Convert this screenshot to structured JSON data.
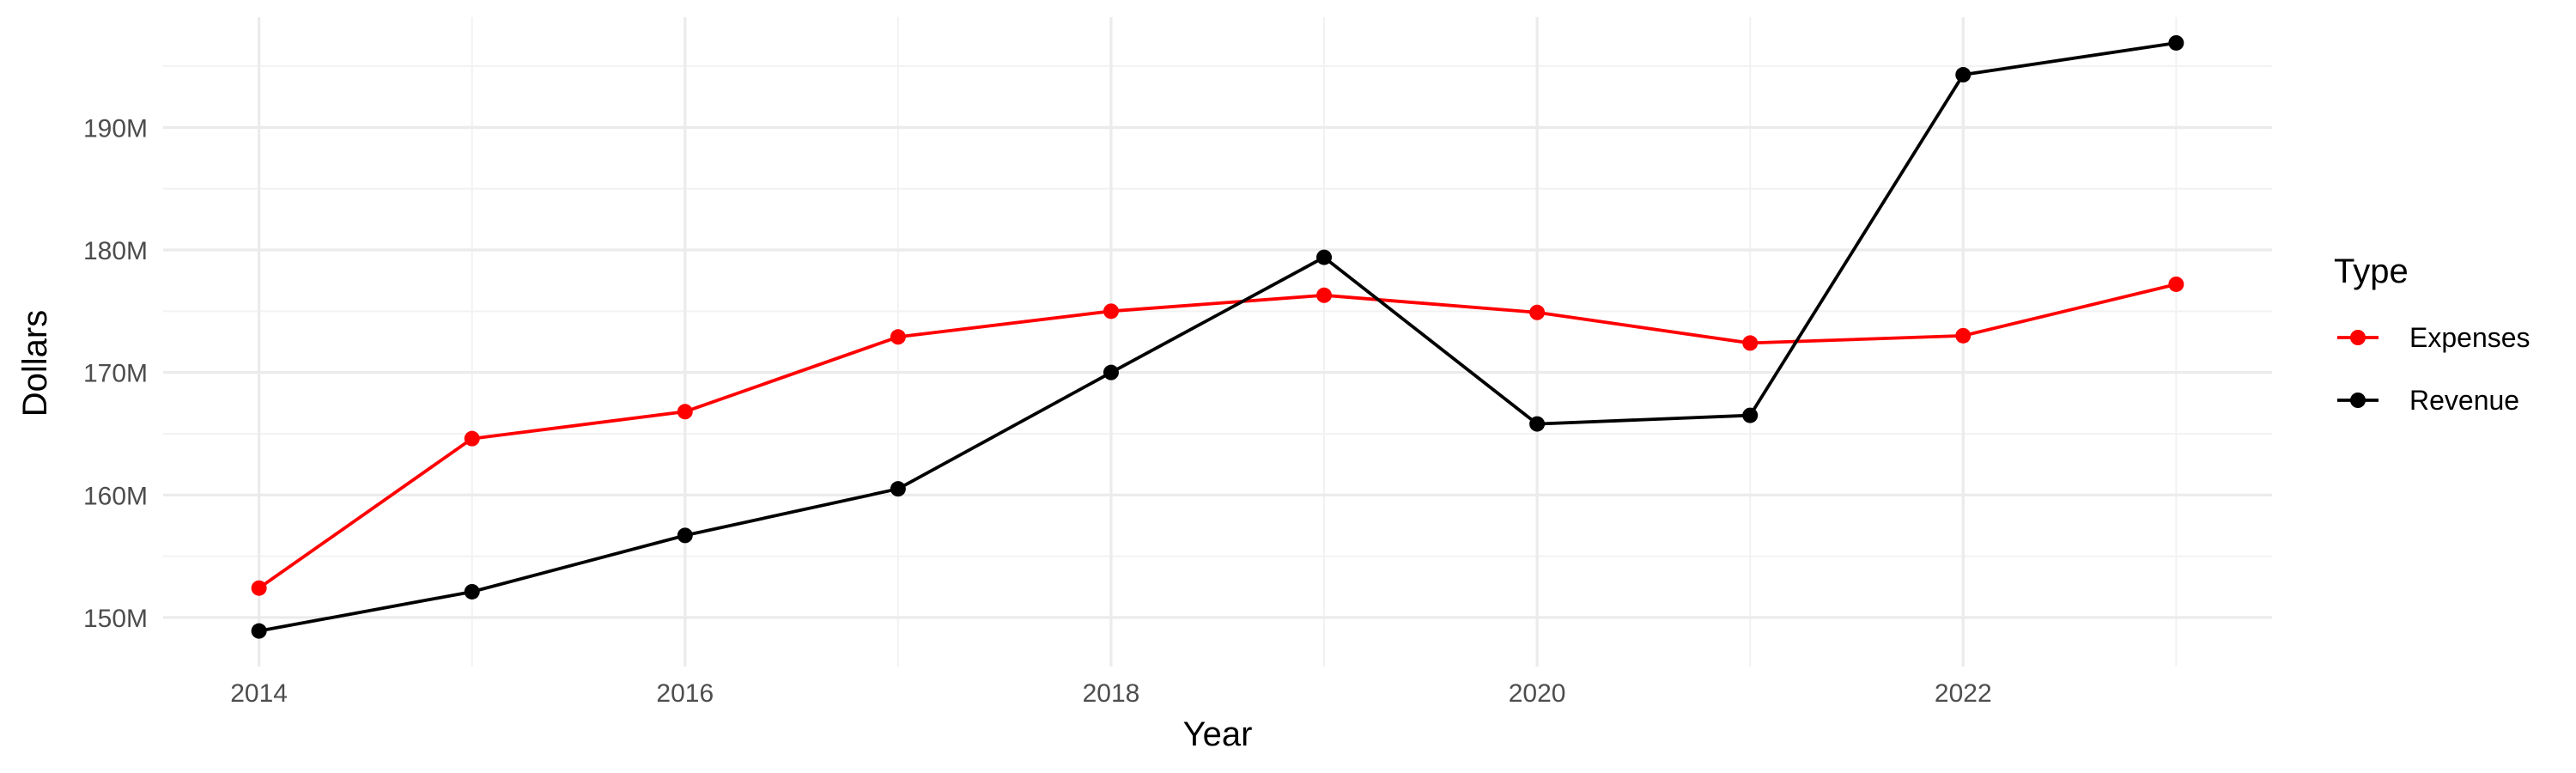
{
  "chart_data": {
    "type": "line",
    "xlabel": "Year",
    "ylabel": "Dollars",
    "x": [
      2014,
      2015,
      2016,
      2017,
      2018,
      2019,
      2020,
      2021,
      2022,
      2023
    ],
    "xlim": [
      2013.55,
      2023.45
    ],
    "ylim": [
      146000000,
      199000000
    ],
    "x_ticks": [
      2014,
      2016,
      2018,
      2020,
      2022
    ],
    "x_tick_labels": [
      "2014",
      "2016",
      "2018",
      "2020",
      "2022"
    ],
    "y_ticks": [
      150000000,
      160000000,
      170000000,
      180000000,
      190000000
    ],
    "y_tick_labels": [
      "150M",
      "160M",
      "170M",
      "180M",
      "190M"
    ],
    "grid": true,
    "legend": {
      "title": "Type",
      "position": "right"
    },
    "series": [
      {
        "name": "Expenses",
        "color": "#ff0000",
        "values": [
          152400000,
          164600000,
          166800000,
          172900000,
          175000000,
          176300000,
          174900000,
          172400000,
          173000000,
          177200000
        ]
      },
      {
        "name": "Revenue",
        "color": "#000000",
        "values": [
          148900000,
          152100000,
          156700000,
          160500000,
          170000000,
          179400000,
          165800000,
          166500000,
          194300000,
          196900000
        ]
      }
    ]
  }
}
